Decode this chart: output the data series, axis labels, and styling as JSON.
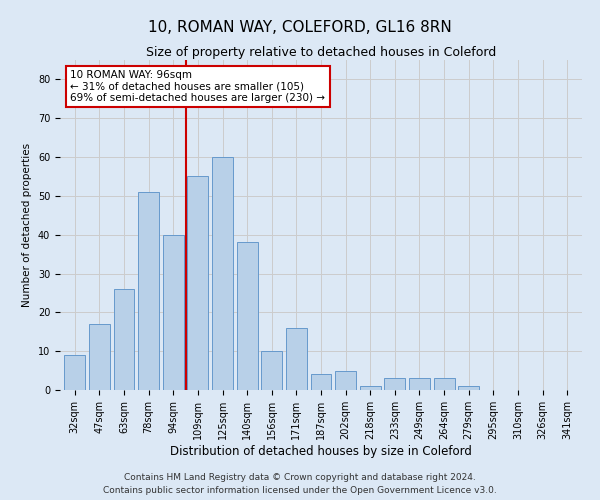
{
  "title1": "10, ROMAN WAY, COLEFORD, GL16 8RN",
  "title2": "Size of property relative to detached houses in Coleford",
  "xlabel": "Distribution of detached houses by size in Coleford",
  "ylabel": "Number of detached properties",
  "categories": [
    "32sqm",
    "47sqm",
    "63sqm",
    "78sqm",
    "94sqm",
    "109sqm",
    "125sqm",
    "140sqm",
    "156sqm",
    "171sqm",
    "187sqm",
    "202sqm",
    "218sqm",
    "233sqm",
    "249sqm",
    "264sqm",
    "279sqm",
    "295sqm",
    "310sqm",
    "326sqm",
    "341sqm"
  ],
  "values": [
    9,
    17,
    26,
    51,
    40,
    55,
    60,
    38,
    10,
    16,
    4,
    5,
    1,
    3,
    3,
    3,
    1,
    0,
    0,
    0,
    0
  ],
  "bar_color": "#b8d0e8",
  "bar_edge_color": "#6699cc",
  "vline_x": 4.5,
  "vline_color": "#cc0000",
  "annotation_text": "10 ROMAN WAY: 96sqm\n← 31% of detached houses are smaller (105)\n69% of semi-detached houses are larger (230) →",
  "annotation_box_color": "#ffffff",
  "annotation_box_edge_color": "#cc0000",
  "ylim": [
    0,
    85
  ],
  "yticks": [
    0,
    10,
    20,
    30,
    40,
    50,
    60,
    70,
    80
  ],
  "grid_color": "#cccccc",
  "background_color": "#dce8f5",
  "footer_line1": "Contains HM Land Registry data © Crown copyright and database right 2024.",
  "footer_line2": "Contains public sector information licensed under the Open Government Licence v3.0.",
  "title1_fontsize": 11,
  "title2_fontsize": 9,
  "xlabel_fontsize": 8.5,
  "ylabel_fontsize": 7.5,
  "tick_fontsize": 7,
  "annotation_fontsize": 7.5,
  "footer_fontsize": 6.5
}
